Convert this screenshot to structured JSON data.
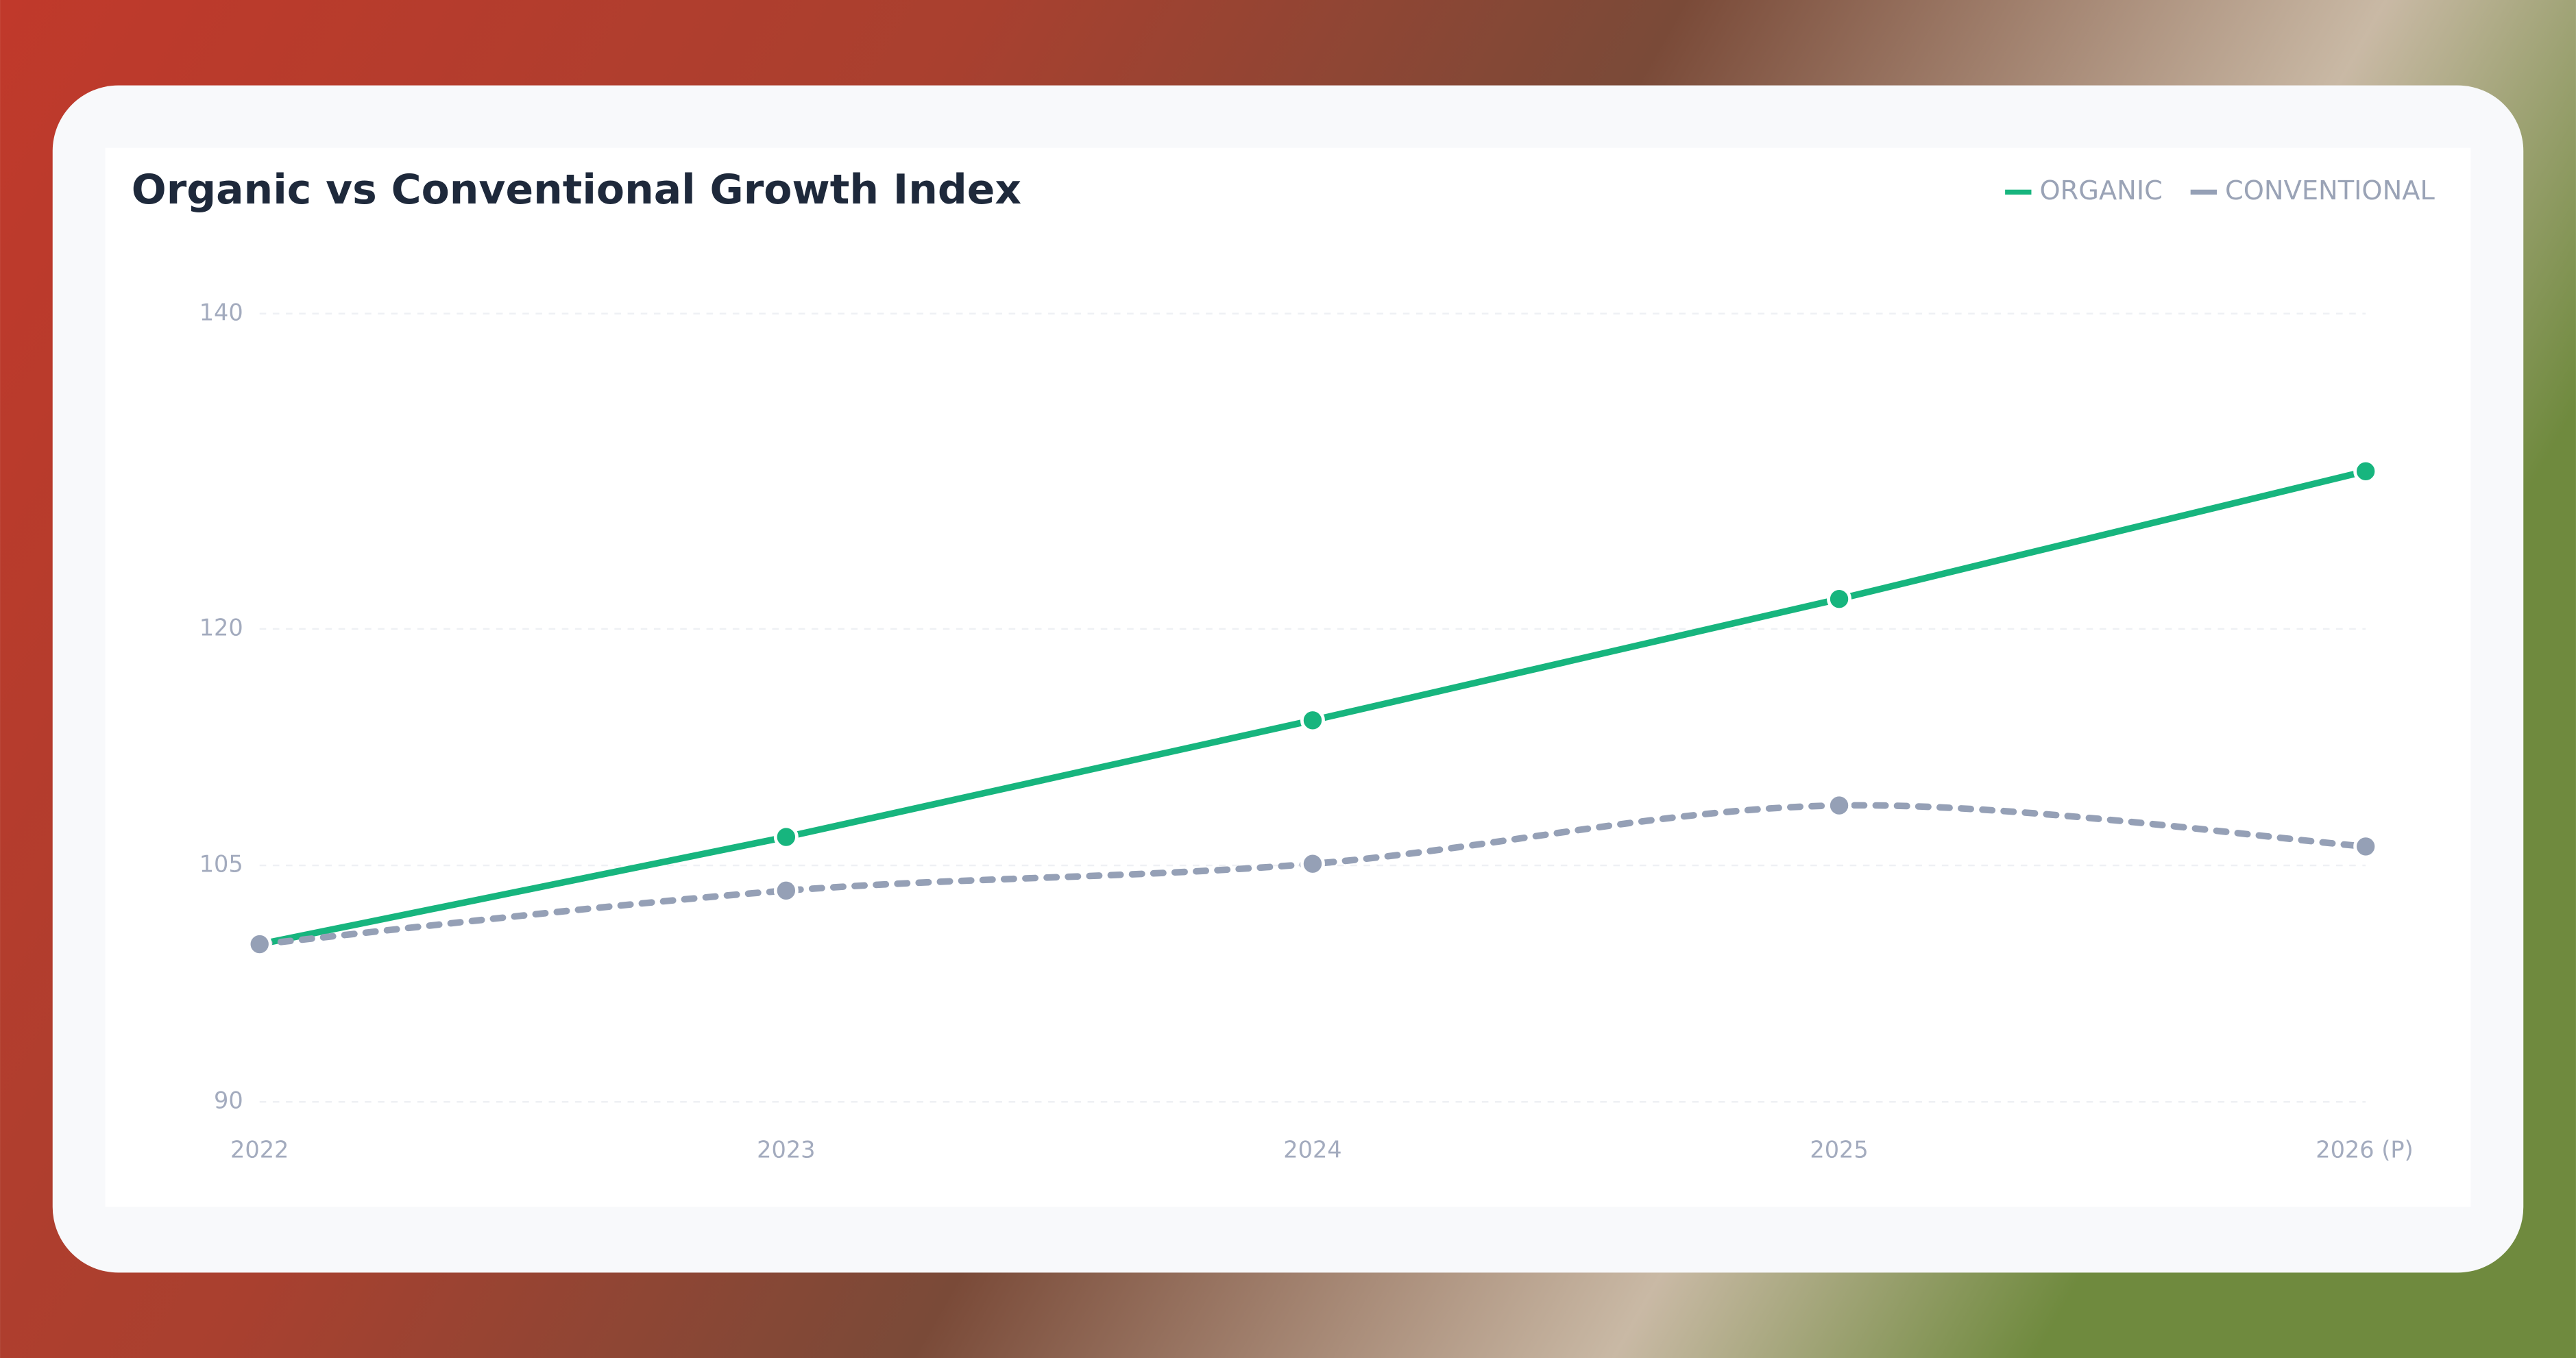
{
  "chart_data": {
    "type": "line",
    "title": "Organic vs Conventional Growth Index",
    "categories": [
      "2022",
      "2023",
      "2024",
      "2025",
      "2026 (P)"
    ],
    "series": [
      {
        "name": "ORGANIC",
        "color": "#17b57e",
        "values": [
          100,
          106.8,
          114.2,
          121.9,
          130
        ],
        "dashed": false,
        "smooth": false
      },
      {
        "name": "CONVENTIONAL",
        "color": "#95a0b6",
        "values": [
          100,
          103.4,
          105.1,
          108.8,
          106.2
        ],
        "dashed": true,
        "smooth": true
      }
    ],
    "ylim": [
      90,
      140
    ],
    "yticks": [
      90,
      105,
      120,
      140
    ],
    "grid": true,
    "legend": "top-right"
  }
}
